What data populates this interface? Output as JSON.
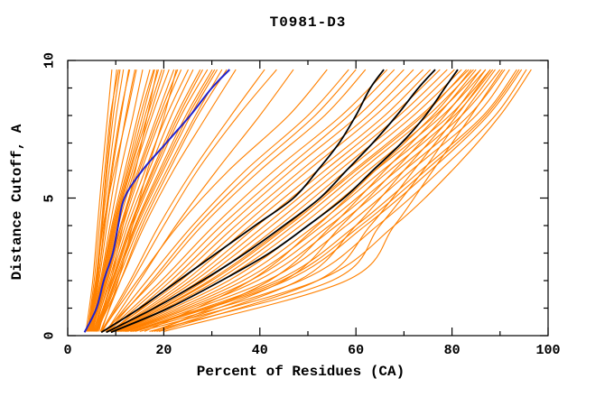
{
  "figure": {
    "title": "T0981-D3",
    "x_axis": {
      "label": "Percent of Residues (CA)",
      "tick_labels": [
        "0",
        "20",
        "40",
        "60",
        "80",
        "100"
      ]
    },
    "y_axis": {
      "label": "Distance Cutoff, A",
      "tick_labels": [
        "0",
        "5",
        "10"
      ]
    }
  },
  "chart_data": {
    "type": "line",
    "title": "T0981-D3",
    "xlabel": "Percent of Residues (CA)",
    "ylabel": "Distance Cutoff, A",
    "xlim": [
      0,
      100
    ],
    "ylim": [
      0,
      10
    ],
    "grid": false,
    "legend": "none",
    "x_major_ticks": [
      0,
      20,
      40,
      60,
      80,
      100
    ],
    "x_minor_ticks": [
      10,
      30,
      50,
      70,
      90
    ],
    "y_major_ticks": [
      0,
      5,
      10
    ],
    "y_minor_ticks": [
      1,
      2,
      3,
      4,
      6,
      7,
      8,
      9
    ],
    "colors": {
      "ensemble": "#ff8000",
      "highlight": "#000000",
      "reference": "#2222cc"
    },
    "note": "x values are percent of CA residues under each distance cutoff; curves sampled at the cutoff grids below",
    "cutoff_grid": [
      0.15,
      2,
      4,
      6,
      8,
      9.67
    ],
    "fine_cutoff_grid": [
      0.12,
      1,
      2,
      3,
      4,
      5,
      6,
      7,
      8,
      9,
      9.67
    ],
    "series": [
      {
        "name": "server-models-ensemble",
        "color": "#ff8000",
        "width": 1.1,
        "grid": "cutoff_grid",
        "curves": [
          [
            3.8,
            5.2,
            6.2,
            7.2,
            8.3,
            9.2
          ],
          [
            4.0,
            5.8,
            7.0,
            8.0,
            9.1,
            10.2
          ],
          [
            4.2,
            6.0,
            7.2,
            8.6,
            10.1,
            11.6
          ],
          [
            4.0,
            6.2,
            7.8,
            9.3,
            11.1,
            12.7
          ],
          [
            4.5,
            6.5,
            8.2,
            10.1,
            12.1,
            14.0
          ],
          [
            4.3,
            6.8,
            8.8,
            11.0,
            13.6,
            15.6
          ],
          [
            4.6,
            7.0,
            9.2,
            11.9,
            14.6,
            17.1
          ],
          [
            5.0,
            7.2,
            9.6,
            12.6,
            15.6,
            18.1
          ],
          [
            4.8,
            7.5,
            10.0,
            13.1,
            16.6,
            19.6
          ],
          [
            5.2,
            7.8,
            10.5,
            13.9,
            17.6,
            21.1
          ],
          [
            5.0,
            8.0,
            11.0,
            14.6,
            18.6,
            22.1
          ],
          [
            5.4,
            8.3,
            11.5,
            15.3,
            19.6,
            23.6
          ],
          [
            5.6,
            8.6,
            12.0,
            16.1,
            20.6,
            25.1
          ],
          [
            5.3,
            8.9,
            12.5,
            16.9,
            21.6,
            26.1
          ],
          [
            5.8,
            9.2,
            13.0,
            17.6,
            22.6,
            27.6
          ],
          [
            5.5,
            9.5,
            13.5,
            18.3,
            23.6,
            29.1
          ],
          [
            6.0,
            9.8,
            14.0,
            19.1,
            24.6,
            30.1
          ],
          [
            5.7,
            10.0,
            14.5,
            19.9,
            25.6,
            31.1
          ],
          [
            6.2,
            10.4,
            15.0,
            20.6,
            26.6,
            32.1
          ],
          [
            4.1,
            5.5,
            6.6,
            7.7,
            8.9,
            10.6
          ],
          [
            4.4,
            6.3,
            7.6,
            9.1,
            10.9,
            12.9
          ],
          [
            4.7,
            7.1,
            9.4,
            12.3,
            15.1,
            17.9
          ],
          [
            5.1,
            8.1,
            11.2,
            14.9,
            19.1,
            22.9
          ],
          [
            5.9,
            9.4,
            13.2,
            17.9,
            23.1,
            28.1
          ],
          [
            4.9,
            7.7,
            10.2,
            13.5,
            17.1,
            20.1
          ],
          [
            6.1,
            10.1,
            14.2,
            19.5,
            25.1,
            30.6
          ],
          [
            4.2,
            5.9,
            7.4,
            9.7,
            12.3,
            14.3
          ],
          [
            6.5,
            9.0,
            11.5,
            14.1,
            16.6,
            18.6
          ],
          [
            7.0,
            10.5,
            13.5,
            16.6,
            20.1,
            22.6
          ],
          [
            6.8,
            11.0,
            15.5,
            21.1,
            27.1,
            33.1
          ],
          [
            4.3,
            6.1,
            7.1,
            8.2,
            9.5,
            10.9
          ],
          [
            5.0,
            7.4,
            9.8,
            12.9,
            16.1,
            18.9
          ],
          [
            6.0,
            11.0,
            16.0,
            22.0,
            29.0,
            35.0
          ],
          [
            7.0,
            13.0,
            19.0,
            26.0,
            34.0,
            41.0
          ],
          [
            8.0,
            15.0,
            22.5,
            31.0,
            40.0,
            47.0
          ],
          [
            7.2,
            13.5,
            20.0,
            27.0,
            35.5,
            43.5
          ],
          [
            7.0,
            14.5,
            23.0,
            33.5,
            46.0,
            54.0
          ],
          [
            8.0,
            16.5,
            26.0,
            37.0,
            50.0,
            58.5
          ],
          [
            7.6,
            18.0,
            28.0,
            40.0,
            53.5,
            62.0
          ],
          [
            8.2,
            19.5,
            30.5,
            43.0,
            57.0,
            66.5
          ],
          [
            9.0,
            21.5,
            33.5,
            46.5,
            60.5,
            70.0
          ],
          [
            8.8,
            23.5,
            36.5,
            50.0,
            64.0,
            74.0
          ],
          [
            9.5,
            25.5,
            39.5,
            53.5,
            67.5,
            77.5
          ],
          [
            10.0,
            27.5,
            42.5,
            56.5,
            70.5,
            80.5
          ],
          [
            10.5,
            29.5,
            45.5,
            59.5,
            73.5,
            83.5
          ],
          [
            11.0,
            32.0,
            48.5,
            62.5,
            76.5,
            86.0
          ],
          [
            11.5,
            35.0,
            51.5,
            65.5,
            79.5,
            88.0
          ],
          [
            12.0,
            38.0,
            54.5,
            68.5,
            82.0,
            90.0
          ],
          [
            12.5,
            41.5,
            58.0,
            71.5,
            85.0,
            92.0
          ],
          [
            13.5,
            45.5,
            62.0,
            75.5,
            87.5,
            94.5
          ],
          [
            15.0,
            52.0,
            68.0,
            80.0,
            90.0,
            96.5
          ],
          [
            9.2,
            22.5,
            35.0,
            48.5,
            62.5,
            72.0
          ],
          [
            10.2,
            28.5,
            44.0,
            58.0,
            72.0,
            82.0
          ],
          [
            11.2,
            33.5,
            50.0,
            64.0,
            78.0,
            87.0
          ],
          [
            8.5,
            20.5,
            32.0,
            45.0,
            58.5,
            68.0
          ],
          [
            12.2,
            39.5,
            56.0,
            70.0,
            83.5,
            91.0
          ],
          [
            13.0,
            43.5,
            60.0,
            73.5,
            86.5,
            93.5
          ],
          [
            9.8,
            26.5,
            41.0,
            55.0,
            69.0,
            79.0
          ],
          [
            10.8,
            31.0,
            47.0,
            61.0,
            75.0,
            84.5
          ],
          [
            14.0,
            48.5,
            64.5,
            77.5,
            89.0,
            95.5
          ],
          [
            16.0,
            38.0,
            52.0,
            64.0,
            76.0,
            84.0
          ],
          [
            18.0,
            42.0,
            55.0,
            66.0,
            77.0,
            85.0
          ],
          [
            18.5,
            48.0,
            60.0,
            70.0,
            80.0,
            87.0
          ],
          [
            19.0,
            52.0,
            63.0,
            72.0,
            81.0,
            88.0
          ],
          [
            17.0,
            55.0,
            65.0,
            74.0,
            82.0,
            89.0
          ],
          [
            8.3,
            17.5,
            27.0,
            38.5,
            51.5,
            60.0
          ],
          [
            9.3,
            24.5,
            38.0,
            52.0,
            66.0,
            75.5
          ],
          [
            11.8,
            36.5,
            53.0,
            67.0,
            80.5,
            88.5
          ],
          [
            13.2,
            44.5,
            61.0,
            74.5,
            87.0,
            94.0
          ],
          [
            17.5,
            45.0,
            57.0,
            68.0,
            78.5,
            86.0
          ],
          [
            20.0,
            58.0,
            68.0,
            76.0,
            84.0,
            90.5
          ],
          [
            10.4,
            30.0,
            46.0,
            60.0,
            74.0,
            83.0
          ]
        ]
      },
      {
        "name": "highlighted-models",
        "color": "#000000",
        "width": 1.8,
        "grid": "fine_cutoff_grid",
        "curves": [
          [
            7.0,
            15.0,
            23.0,
            31.0,
            39.0,
            47.0,
            52.0,
            56.5,
            60.0,
            63.0,
            65.8
          ],
          [
            8.0,
            18.0,
            28.0,
            37.0,
            45.0,
            52.5,
            58.0,
            63.5,
            68.5,
            73.0,
            76.5
          ],
          [
            9.0,
            21.0,
            32.0,
            42.0,
            50.0,
            57.5,
            63.5,
            69.5,
            74.5,
            78.5,
            81.2
          ]
        ]
      },
      {
        "name": "reference-model",
        "color": "#2222cc",
        "width": 2,
        "grid": "fine_cutoff_grid",
        "curves": [
          [
            3.5,
            6.0,
            7.5,
            9.4,
            10.5,
            11.8,
            15.5,
            20.5,
            25.5,
            30.0,
            33.7
          ]
        ]
      }
    ]
  }
}
